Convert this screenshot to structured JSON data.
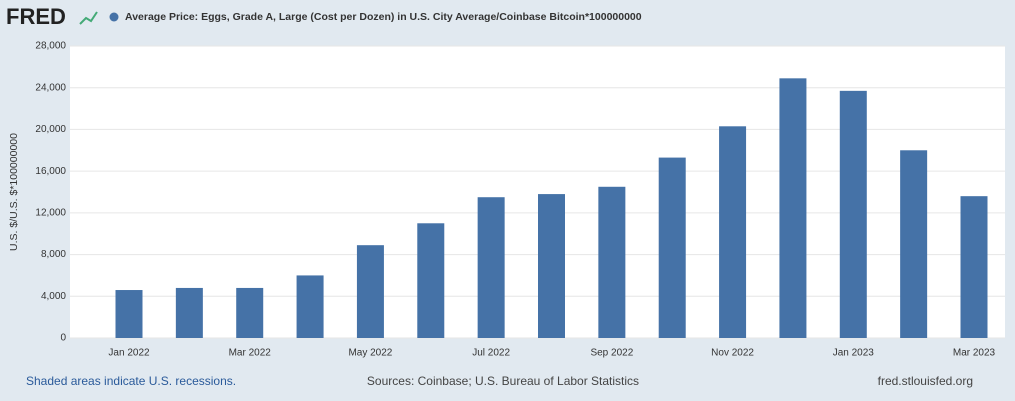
{
  "header": {
    "logo": "FRED"
  },
  "chart_data": {
    "type": "bar",
    "series": [
      {
        "name": "Average Price: Eggs, Grade A, Large (Cost per Dozen) in U.S. City Average/Coinbase Bitcoin*100000000",
        "color": "#4572a7",
        "values": [
          4600,
          4800,
          4800,
          6000,
          8900,
          11000,
          13500,
          13800,
          14500,
          17300,
          20300,
          24900,
          23700,
          18000,
          13600
        ]
      }
    ],
    "categories": [
      "Jan 2022",
      null,
      "Mar 2022",
      null,
      "May 2022",
      null,
      "Jul 2022",
      null,
      "Sep 2022",
      null,
      "Nov 2022",
      null,
      "Jan 2023",
      null,
      "Mar 2023"
    ],
    "y_label": "U.S. $/U.S. $*100000000",
    "ylim": [
      0,
      28000
    ],
    "yticks": [
      0,
      {
        "value": 4000,
        "label": "4,000"
      },
      {
        "value": 8000,
        "label": "8,000"
      },
      {
        "value": 12000,
        "label": "12,000"
      },
      {
        "value": 16000,
        "label": "16,000"
      },
      {
        "value": 20000,
        "label": "20,000"
      },
      {
        "value": 24000,
        "label": "24,000"
      },
      {
        "value": 28000,
        "label": "28,000"
      }
    ],
    "grid": true
  },
  "footer": {
    "note": "Shaded areas indicate U.S. recessions.",
    "sources": "Sources: Coinbase; U.S. Bureau of Labor Statistics",
    "site": "fred.stlouisfed.org"
  }
}
